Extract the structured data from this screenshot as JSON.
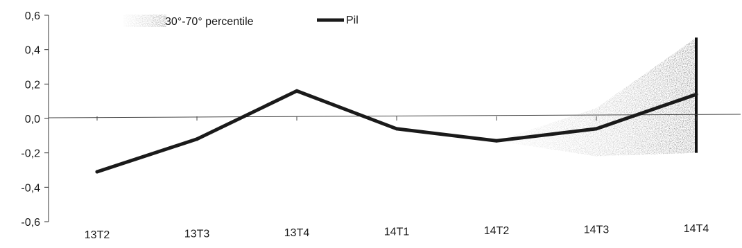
{
  "chart_data": {
    "type": "line",
    "categories": [
      "13T2",
      "13T3",
      "13T4",
      "14T1",
      "14T2",
      "14T3",
      "14T4"
    ],
    "ylim": [
      -0.6,
      0.6
    ],
    "yticks": [
      -0.6,
      -0.4,
      -0.2,
      0.0,
      0.2,
      0.4,
      0.6
    ],
    "ytick_labels": [
      "-0,6",
      "-0,4",
      "-0,2",
      "0,0",
      "0,2",
      "0,4",
      "0,6"
    ],
    "grid": false,
    "legend": {
      "placement": "top",
      "entries": [
        "30°-70° percentile",
        "Pil"
      ]
    },
    "series": [
      {
        "name": "Pil",
        "color": "#1a1a1a",
        "values": [
          -0.31,
          -0.12,
          0.16,
          -0.06,
          -0.13,
          -0.06,
          0.14
        ]
      }
    ],
    "band": {
      "name": "30°-70° percentile",
      "color": "#555555",
      "x_categories": [
        "14T2",
        "14T3",
        "14T4"
      ],
      "lower": [
        -0.13,
        -0.22,
        -0.2
      ],
      "upper": [
        -0.13,
        0.06,
        0.47
      ]
    }
  }
}
